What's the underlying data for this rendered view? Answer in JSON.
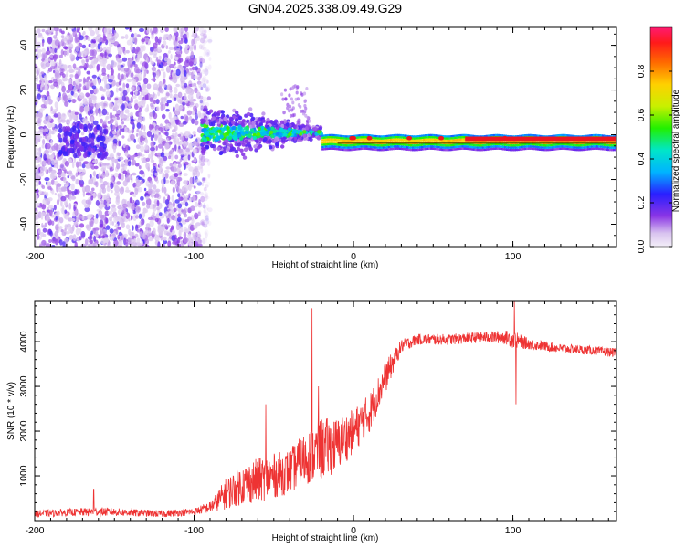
{
  "title": "GN04.2025.338.09.49.G29",
  "chart_data": [
    {
      "type": "heatmap",
      "xlabel": "Height of straight line (km)",
      "ylabel": "Frequency (Hz)",
      "xlim": [
        -200,
        165
      ],
      "ylim": [
        -50,
        48
      ],
      "xticks": [
        -200,
        -100,
        0,
        100
      ],
      "yticks": [
        -40,
        -20,
        0,
        20,
        40
      ],
      "colorbar": {
        "label": "Normalized spectral amplitude",
        "range": [
          0,
          1
        ],
        "ticks": [
          "0.0",
          "0.2",
          "0.4",
          "0.6",
          "0.8"
        ]
      },
      "regions": [
        {
          "name": "noise",
          "x": [
            -200,
            -90
          ],
          "freq_spread": [
            -50,
            48
          ],
          "amplitude": 0.1
        },
        {
          "name": "transition",
          "x": [
            -95,
            -20
          ],
          "freq_spread": [
            -10,
            10
          ],
          "amplitude": 0.4
        },
        {
          "name": "tone",
          "x": [
            -20,
            165
          ],
          "freq_center": -2,
          "freq_spread": [
            -4,
            2
          ],
          "amplitude": 0.85
        }
      ]
    },
    {
      "type": "line",
      "xlabel": "Height of straight line (km)",
      "ylabel": "SNR (10 * v/v)",
      "xlim": [
        -200,
        165
      ],
      "ylim": [
        0,
        4900
      ],
      "xticks": [
        -200,
        -100,
        0,
        100
      ],
      "yticks": [
        1000,
        2000,
        3000,
        4000
      ],
      "color": "#ee3333",
      "series": [
        {
          "name": "SNR",
          "x": [
            -200,
            -180,
            -160,
            -140,
            -120,
            -100,
            -90,
            -80,
            -70,
            -60,
            -50,
            -40,
            -30,
            -20,
            -10,
            0,
            10,
            20,
            30,
            40,
            60,
            80,
            95,
            100,
            110,
            130,
            150,
            165
          ],
          "y": [
            150,
            180,
            200,
            180,
            150,
            200,
            300,
            600,
            800,
            900,
            1000,
            1100,
            1400,
            1600,
            1700,
            2000,
            2400,
            3200,
            3900,
            4050,
            4050,
            4100,
            4100,
            4050,
            3950,
            3850,
            3800,
            3750
          ],
          "noise": [
            80,
            80,
            100,
            80,
            80,
            80,
            120,
            350,
            450,
            500,
            500,
            500,
            600,
            700,
            600,
            500,
            450,
            350,
            150,
            120,
            120,
            120,
            150,
            200,
            120,
            100,
            100,
            100
          ]
        }
      ],
      "spikes": [
        {
          "x": -163,
          "y": 700
        },
        {
          "x": -55,
          "y": 2600
        },
        {
          "x": -26,
          "y": 4750
        },
        {
          "x": -22,
          "y": 3000
        },
        {
          "x": 101,
          "y": 4900
        },
        {
          "x": 102,
          "y": 2600
        }
      ]
    }
  ]
}
